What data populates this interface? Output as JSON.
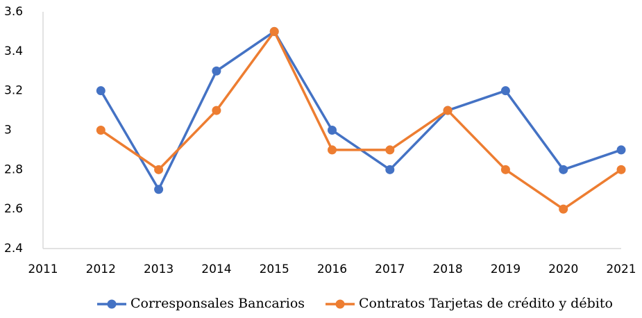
{
  "chart_data": {
    "type": "line",
    "x": [
      2012,
      2013,
      2014,
      2015,
      2016,
      2017,
      2018,
      2019,
      2020,
      2021
    ],
    "series": [
      {
        "name": "Corresponsales Bancarios",
        "color": "#4472c4",
        "values": [
          3.2,
          2.7,
          3.3,
          3.5,
          3.0,
          2.8,
          3.1,
          3.2,
          2.8,
          2.9
        ]
      },
      {
        "name": "Contratos Tarjetas de crédito y débito",
        "color": "#ed7d31",
        "values": [
          3.0,
          2.8,
          3.1,
          3.5,
          2.9,
          2.9,
          3.1,
          2.8,
          2.6,
          2.8
        ]
      }
    ],
    "xlim": [
      2011,
      2021
    ],
    "xticks": [
      2011,
      2012,
      2013,
      2014,
      2015,
      2016,
      2017,
      2018,
      2019,
      2020,
      2021
    ],
    "ylim": [
      2.4,
      3.6
    ],
    "yticks": [
      2.4,
      2.6,
      2.8,
      3,
      3.2,
      3.4,
      3.6
    ],
    "grid": false,
    "legend": "bottom"
  }
}
